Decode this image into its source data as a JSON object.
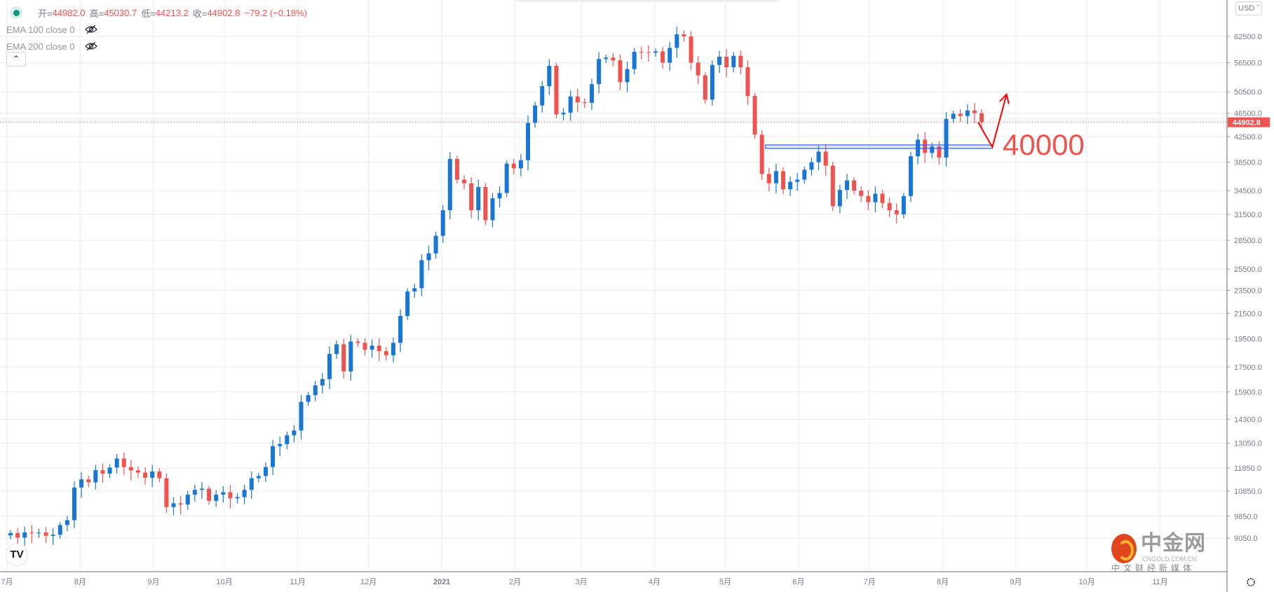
{
  "legend": {
    "ohlc": {
      "o_label": "开=",
      "o": "44982.0",
      "h_label": "高=",
      "h": "45030.7",
      "l_label": "低=",
      "l": "44213.2",
      "c_label": "收=",
      "c": "44902.8",
      "change": "−79.2 (−0.18%)"
    },
    "indicators": [
      {
        "label": "EMA 100 close 0"
      },
      {
        "label": "EMA 200 close 0"
      }
    ],
    "collapse_icon": "chevron-up-icon"
  },
  "currency": "USD",
  "watermark": {
    "name": "中金网",
    "site": "CNGOLD.COM.CN",
    "tagline": "中文财经新媒体"
  },
  "tv_logo": "TV",
  "colors": {
    "up": "#1976d2",
    "down": "#ef5350",
    "grid": "#e6edf3",
    "price_line": "#ef5350",
    "zone": "#2962ff",
    "annotation": "#ff0000",
    "annotation_text": "#ef5350"
  },
  "chart_data": {
    "type": "candlestick",
    "scale": "log",
    "start_date": "2020-07-01",
    "step_days": 3,
    "closes": [
      9230,
      9070,
      9250,
      9230,
      9250,
      9130,
      9170,
      9520,
      9700,
      11000,
      11350,
      11220,
      11760,
      11600,
      11880,
      12300,
      11900,
      11750,
      11650,
      11420,
      11700,
      11400,
      10200,
      10350,
      10300,
      10700,
      10900,
      10950,
      10450,
      10700,
      10800,
      10550,
      10600,
      10900,
      11400,
      11500,
      11900,
      12900,
      13000,
      13450,
      13700,
      15300,
      15700,
      16300,
      16700,
      18400,
      19100,
      17200,
      19300,
      19200,
      18700,
      19000,
      18600,
      18300,
      19200,
      21300,
      23400,
      23700,
      26400,
      27100,
      29000,
      32000,
      39000,
      36000,
      35500,
      32000,
      35000,
      30800,
      33500,
      34200,
      38300,
      37600,
      38800,
      44800,
      47900,
      51600,
      55800,
      46300,
      46600,
      49600,
      48500,
      48400,
      52000,
      57300,
      57600,
      57000,
      52400,
      55100,
      58900,
      58800,
      58700,
      59000,
      56500,
      59800,
      63000,
      62500,
      56500,
      53800,
      49000,
      56000,
      57800,
      55500,
      58000,
      55500,
      49700,
      42800,
      36800,
      35500,
      37200,
      34700,
      35700,
      36000,
      37400,
      38500,
      40100,
      38000,
      32500,
      34600,
      35900,
      34500,
      33800,
      33000,
      34100,
      32900,
      32000,
      31500,
      33800,
      39400,
      42000,
      39900,
      40900,
      39200,
      45500,
      46400,
      46000,
      47000,
      46500,
      44902.8
    ],
    "first_open": 9150,
    "price_ticks": [
      62500,
      56500,
      50500,
      46500,
      42500,
      38500,
      34500,
      31500,
      28500,
      25500,
      23500,
      21500,
      19500,
      17500,
      15900,
      14300,
      13050,
      11850,
      10850,
      9850,
      9050
    ],
    "last_price": 44902.8,
    "last_price_label": "44902.8",
    "time_ticks": [
      {
        "label": "7月",
        "day": 0
      },
      {
        "label": "8月",
        "day": 31
      },
      {
        "label": "9月",
        "day": 62
      },
      {
        "label": "10月",
        "day": 92
      },
      {
        "label": "11月",
        "day": 123
      },
      {
        "label": "12月",
        "day": 153
      },
      {
        "label": "2021",
        "day": 184
      },
      {
        "label": "2月",
        "day": 215
      },
      {
        "label": "3月",
        "day": 243
      },
      {
        "label": "4月",
        "day": 274
      },
      {
        "label": "5月",
        "day": 304
      },
      {
        "label": "6月",
        "day": 335
      },
      {
        "label": "7月",
        "day": 365
      },
      {
        "label": "8月",
        "day": 396
      },
      {
        "label": "9月",
        "day": 427
      },
      {
        "label": "10月",
        "day": 457
      },
      {
        "label": "11月",
        "day": 488
      }
    ],
    "annotations": {
      "zone": {
        "day_start": 321,
        "day_end": 417,
        "price_low": 40600,
        "price_high": 41150
      },
      "arrow": [
        {
          "day": 411,
          "price": 44902.8
        },
        {
          "day": 417,
          "price": 40800
        },
        {
          "day": 423,
          "price": 50000
        }
      ],
      "text": "40000"
    }
  }
}
